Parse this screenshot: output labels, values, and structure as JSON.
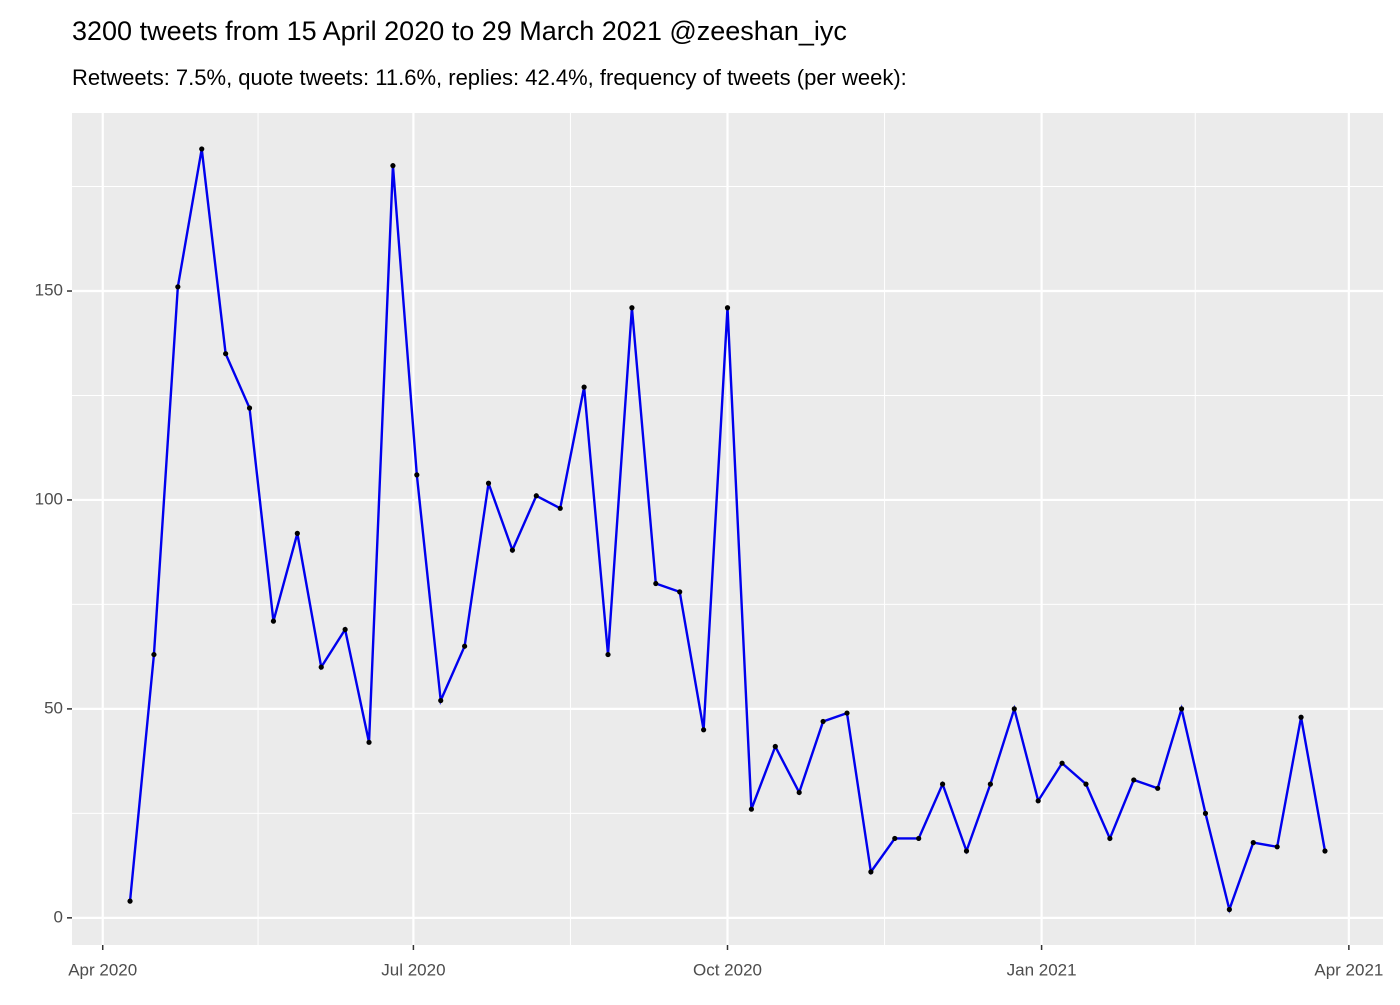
{
  "chart_data": {
    "type": "line",
    "title": "3200 tweets from 15 April 2020 to 29 March 2021 @zeeshan_iyc",
    "subtitle": "Retweets: 7.5%, quote tweets: 11.6%, replies: 42.4%, frequency of tweets (per week):",
    "x": [
      "2020-04-09",
      "2020-04-16",
      "2020-04-23",
      "2020-04-30",
      "2020-05-07",
      "2020-05-14",
      "2020-05-21",
      "2020-05-28",
      "2020-06-04",
      "2020-06-11",
      "2020-06-18",
      "2020-06-25",
      "2020-07-02",
      "2020-07-09",
      "2020-07-16",
      "2020-07-23",
      "2020-07-30",
      "2020-08-06",
      "2020-08-13",
      "2020-08-20",
      "2020-08-27",
      "2020-09-03",
      "2020-09-10",
      "2020-09-17",
      "2020-09-24",
      "2020-10-01",
      "2020-10-08",
      "2020-10-15",
      "2020-10-22",
      "2020-10-29",
      "2020-11-05",
      "2020-11-12",
      "2020-11-19",
      "2020-11-26",
      "2020-12-03",
      "2020-12-10",
      "2020-12-17",
      "2020-12-24",
      "2020-12-31",
      "2021-01-07",
      "2021-01-14",
      "2021-01-21",
      "2021-01-28",
      "2021-02-04",
      "2021-02-11",
      "2021-02-18",
      "2021-02-25",
      "2021-03-04",
      "2021-03-11",
      "2021-03-18",
      "2021-03-25"
    ],
    "series": [
      {
        "color": "#0000ee",
        "point_color": "#000000",
        "values": [
          4,
          63,
          151,
          184,
          135,
          122,
          71,
          92,
          60,
          69,
          42,
          180,
          106,
          52,
          65,
          104,
          88,
          101,
          98,
          127,
          63,
          146,
          80,
          78,
          45,
          146,
          26,
          41,
          30,
          47,
          49,
          11,
          19,
          19,
          32,
          16,
          32,
          50,
          28,
          37,
          32,
          19,
          33,
          31,
          50,
          25,
          2,
          18,
          17,
          48,
          16
        ]
      }
    ],
    "xlim": [
      "2020-03-23",
      "2021-04-11"
    ],
    "xticks": [
      {
        "value": "2020-04",
        "label": "Apr 2020"
      },
      {
        "value": "2020-07",
        "label": "Jul 2020"
      },
      {
        "value": "2020-10",
        "label": "Oct 2020"
      },
      {
        "value": "2021-01",
        "label": "Jan 2021"
      },
      {
        "value": "2021-04",
        "label": "Apr 2021"
      }
    ],
    "ylim": [
      -6.5,
      192.6
    ],
    "yticks": [
      0,
      50,
      100,
      150
    ],
    "yticks_minor": [
      25,
      75,
      125,
      175
    ],
    "grid": true
  }
}
